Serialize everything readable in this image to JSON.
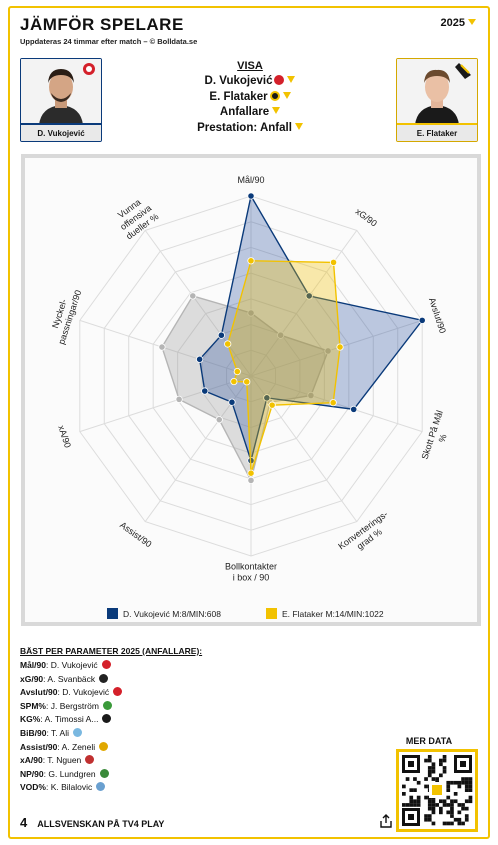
{
  "header": {
    "title": "JÄMFÖR SPELARE",
    "subtitle": "Uppdateras 24 timmar efter match – © Bolldata.se",
    "year": "2025"
  },
  "players": [
    {
      "name": "D. Vukojević",
      "color": "#0a3a7a"
    },
    {
      "name": "E. Flataker",
      "color": "#f2c200"
    }
  ],
  "visa": {
    "label": "VISA",
    "player1": "D. Vukojević",
    "player2": "E. Flataker",
    "position": "Anfallare",
    "presentation": "Prestation: Anfall"
  },
  "chart_data": {
    "type": "radar",
    "axes": [
      "Mål/90",
      "xG/90",
      "Avslut/90",
      "Skott På Mål %",
      "Konverterings- grad %",
      "Bollkontakter i box / 90",
      "Assist/90",
      "xA/90",
      "Nyckel- passningar/90",
      "Vunna offensiva dueller %"
    ],
    "scale": [
      0,
      1
    ],
    "rings": 7,
    "grid": true,
    "legend_position": "bottom",
    "series": [
      {
        "name": "D. Vukojević M:8/MIN:608",
        "color": "#0a3a7a",
        "values": [
          1.0,
          0.55,
          1.0,
          0.6,
          0.15,
          0.47,
          0.18,
          0.27,
          0.3,
          0.28
        ]
      },
      {
        "name": "E. Flataker M:14/MIN:1022",
        "color": "#f2c200",
        "values": [
          0.64,
          0.78,
          0.52,
          0.48,
          0.2,
          0.54,
          0.04,
          0.1,
          0.08,
          0.22
        ]
      },
      {
        "name": "",
        "color": "#9a9a9a",
        "values": [
          0.35,
          0.28,
          0.45,
          0.35,
          0.18,
          0.58,
          0.3,
          0.42,
          0.52,
          0.55
        ]
      }
    ]
  },
  "best": {
    "header": "BÄST PER PARAMETER 2025 (ANFALLARE):",
    "rows": [
      {
        "param": "Mål/90",
        "player": "D. Vukojević",
        "color": "#d4202a"
      },
      {
        "param": "xG/90",
        "player": "A. Svanbäck",
        "color": "#222222"
      },
      {
        "param": "Avslut/90",
        "player": "D. Vukojević",
        "color": "#d4202a"
      },
      {
        "param": "SPM%",
        "player": "J. Bergström",
        "color": "#3a9a3a"
      },
      {
        "param": "KG%",
        "player": "A. Timossi A...",
        "color": "#1a1a1a"
      },
      {
        "param": "BiB/90",
        "player": "T. Ali",
        "color": "#7ab8e0"
      },
      {
        "param": "Assist/90",
        "player": "A. Zeneli",
        "color": "#e0a800"
      },
      {
        "param": "xA/90",
        "player": "T. Nguen",
        "color": "#c03030"
      },
      {
        "param": "NP/90",
        "player": "G. Lundgren",
        "color": "#3a8a3a"
      },
      {
        "param": "VOD%",
        "player": "K. Bilalovic",
        "color": "#6aa0d0"
      }
    ]
  },
  "merdata": "MER DATA",
  "footer": {
    "brand": "4",
    "text": "ALLSVENSKAN PÅ TV4 PLAY"
  }
}
